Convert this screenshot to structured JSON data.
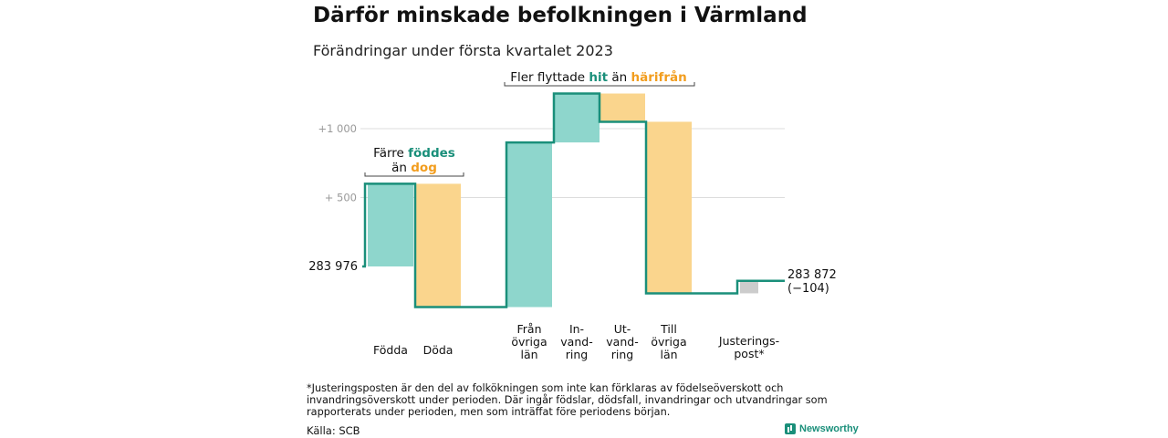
{
  "title": "Därför minskade befolkningen i Värmland",
  "subtitle": "Förändringar under första kvartalet 2023",
  "colors": {
    "in": "#8ed6cc",
    "out": "#fad58d",
    "adjust": "#cccccc",
    "line": "#1a8f7a",
    "teal_text": "#1a8f7a",
    "orange_text": "#f29d1e",
    "grid": "#dddddd",
    "tick": "#999999"
  },
  "chart_data": {
    "type": "waterfall",
    "start": {
      "label": "283 976",
      "value": 0
    },
    "end": {
      "label": "283 872",
      "change_label": "(−104)",
      "value": -104
    },
    "y_ticks": [
      {
        "value": 500,
        "label": "+ 500"
      },
      {
        "value": 1000,
        "label": "+1 000"
      }
    ],
    "ylim": [
      -300,
      1300
    ],
    "steps": [
      {
        "lines": [
          "Födda"
        ],
        "delta": 600,
        "kind": "in"
      },
      {
        "lines": [
          "Döda"
        ],
        "delta": -895,
        "kind": "out"
      },
      {
        "lines": [
          "Från",
          "övriga",
          "län"
        ],
        "delta": 1195,
        "kind": "in"
      },
      {
        "lines": [
          "In-",
          "vand-",
          "ring"
        ],
        "delta": 355,
        "kind": "in"
      },
      {
        "lines": [
          "Ut-",
          "vand-",
          "ring"
        ],
        "delta": -205,
        "kind": "out"
      },
      {
        "lines": [
          "Till",
          "övriga",
          "län"
        ],
        "delta": -1245,
        "kind": "out"
      },
      {
        "lines": [
          "Justerings-",
          "post*"
        ],
        "delta": 91,
        "kind": "adjust"
      }
    ],
    "annotations": [
      {
        "parts": [
          {
            "text": "Färre ",
            "style": "plain"
          },
          {
            "text": "föddes",
            "style": "teal"
          }
        ],
        "parts2": [
          {
            "text": "än ",
            "style": "plain"
          },
          {
            "text": "dog",
            "style": "orange"
          }
        ]
      },
      {
        "parts": [
          {
            "text": "Fler flyttade ",
            "style": "plain"
          },
          {
            "text": "hit",
            "style": "teal"
          },
          {
            "text": " än ",
            "style": "plain"
          },
          {
            "text": "härifrån",
            "style": "orange"
          }
        ]
      }
    ]
  },
  "footnote": "*Justeringsposten är den del av folkökningen som inte kan förklaras av födelseöverskott och invandringsöverskott under perioden. Där ingår födslar, dödsfall, invandringar och utvandringar som rapporterats under perioden, men som inträffat före periodens början.",
  "source": "Källa: SCB",
  "brand": "Newsworthy"
}
